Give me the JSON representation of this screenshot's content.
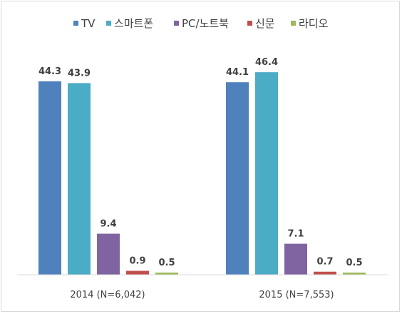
{
  "chart_data": {
    "type": "bar",
    "categories": [
      "2014 (N=6,042)",
      "2015 (N=7,553)"
    ],
    "series": [
      {
        "name": "TV",
        "color": "#4f81bd",
        "values": [
          44.3,
          44.1
        ]
      },
      {
        "name": "스마트폰",
        "color": "#4bacc6",
        "values": [
          43.9,
          46.4
        ]
      },
      {
        "name": "PC/노트북",
        "color": "#8064a2",
        "values": [
          9.4,
          7.1
        ]
      },
      {
        "name": "신문",
        "color": "#c0504d",
        "values": [
          0.9,
          0.7
        ]
      },
      {
        "name": "라디오",
        "color": "#9bbb59",
        "values": [
          0.5,
          0.5
        ]
      }
    ],
    "ylim": [
      0,
      50
    ],
    "grid": false,
    "legend": "top",
    "title": "",
    "xlabel": "",
    "ylabel": ""
  }
}
